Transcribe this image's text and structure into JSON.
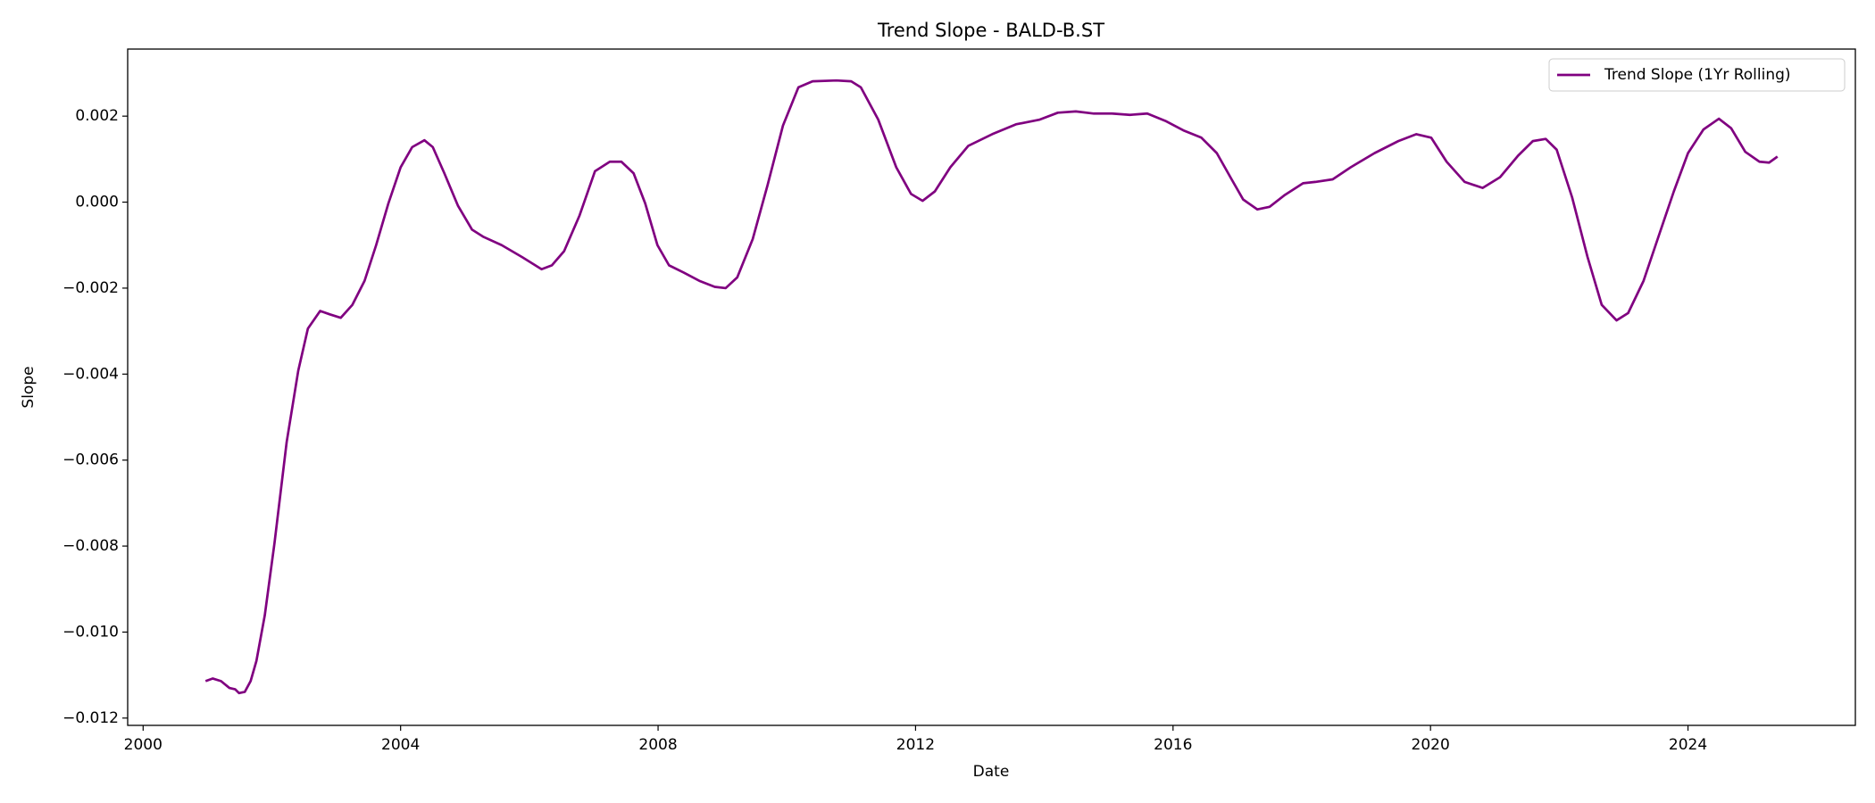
{
  "chart_data": {
    "type": "line",
    "title": "Trend Slope - BALD-B.ST",
    "x_label": "Date",
    "y_label": "Slope",
    "x": [
      2000.97,
      2001.08,
      2001.21,
      2001.34,
      2001.43,
      2001.49,
      2001.58,
      2001.67,
      2001.76,
      2001.89,
      2002.04,
      2002.23,
      2002.41,
      2002.56,
      2002.75,
      2002.9,
      2003.07,
      2003.25,
      2003.44,
      2003.62,
      2003.81,
      2004.0,
      2004.18,
      2004.37,
      2004.5,
      2004.68,
      2004.89,
      2005.11,
      2005.29,
      2005.57,
      2005.89,
      2006.04,
      2006.19,
      2006.35,
      2006.54,
      2006.78,
      2007.02,
      2007.25,
      2007.43,
      2007.62,
      2007.8,
      2007.99,
      2008.17,
      2008.4,
      2008.64,
      2008.88,
      2009.05,
      2009.23,
      2009.47,
      2009.7,
      2009.94,
      2010.18,
      2010.4,
      2010.77,
      2011.0,
      2011.15,
      2011.42,
      2011.7,
      2011.93,
      2012.11,
      2012.3,
      2012.54,
      2012.82,
      2013.19,
      2013.56,
      2013.93,
      2014.21,
      2014.49,
      2014.77,
      2015.05,
      2015.33,
      2015.6,
      2015.88,
      2016.16,
      2016.44,
      2016.68,
      2016.91,
      2017.09,
      2017.31,
      2017.5,
      2017.74,
      2018.02,
      2018.21,
      2018.48,
      2018.76,
      2019.13,
      2019.5,
      2019.78,
      2020.01,
      2020.25,
      2020.53,
      2020.81,
      2021.08,
      2021.36,
      2021.59,
      2021.79,
      2021.96,
      2022.2,
      2022.44,
      2022.66,
      2022.89,
      2023.07,
      2023.31,
      2023.56,
      2023.78,
      2024.0,
      2024.24,
      2024.48,
      2024.67,
      2024.89,
      2025.11,
      2025.26,
      2025.39
    ],
    "series": [
      {
        "name": "Trend Slope (1Yr Rolling)",
        "color": "#800080",
        "values": [
          -0.01114,
          -0.01108,
          -0.01114,
          -0.0113,
          -0.01133,
          -0.01142,
          -0.01139,
          -0.01114,
          -0.01067,
          -0.00961,
          -0.00794,
          -0.00558,
          -0.00392,
          -0.00294,
          -0.00253,
          -0.00261,
          -0.00269,
          -0.00239,
          -0.00183,
          -0.001,
          -3e-05,
          0.00081,
          0.00128,
          0.00144,
          0.00128,
          0.00067,
          -8e-05,
          -0.00064,
          -0.00081,
          -0.001,
          -0.00128,
          -0.00142,
          -0.00156,
          -0.00147,
          -0.00114,
          -0.00031,
          0.00072,
          0.00094,
          0.00094,
          0.00067,
          -3e-05,
          -0.001,
          -0.00147,
          -0.00164,
          -0.00183,
          -0.00197,
          -0.002,
          -0.00175,
          -0.00086,
          0.00039,
          0.00178,
          0.00267,
          0.00281,
          0.00283,
          0.00281,
          0.00267,
          0.00192,
          0.00081,
          0.00019,
          3e-05,
          0.00025,
          0.00081,
          0.00131,
          0.00158,
          0.00181,
          0.00192,
          0.00208,
          0.00211,
          0.00206,
          0.00206,
          0.00203,
          0.00206,
          0.00189,
          0.00167,
          0.0015,
          0.00114,
          0.00053,
          6e-05,
          -0.00017,
          -0.00011,
          0.00017,
          0.00044,
          0.00047,
          0.00053,
          0.00081,
          0.00114,
          0.00142,
          0.00158,
          0.0015,
          0.00094,
          0.00047,
          0.00033,
          0.00058,
          0.00108,
          0.00142,
          0.00147,
          0.00122,
          0.00011,
          -0.00128,
          -0.00239,
          -0.00275,
          -0.00258,
          -0.00183,
          -0.00072,
          0.00025,
          0.00114,
          0.00169,
          0.00194,
          0.00172,
          0.00117,
          0.00094,
          0.00092,
          0.00106
        ]
      }
    ],
    "xlim": [
      1999.76,
      2026.6
    ],
    "xticks": [
      2000,
      2004,
      2008,
      2012,
      2016,
      2020,
      2024
    ],
    "ylim": [
      -0.01217,
      0.00356
    ],
    "yticks": [
      {
        "value": -0.012,
        "label": "−0.012"
      },
      {
        "value": -0.01,
        "label": "−0.010"
      },
      {
        "value": -0.008,
        "label": "−0.008"
      },
      {
        "value": -0.006,
        "label": "−0.006"
      },
      {
        "value": -0.004,
        "label": "−0.004"
      },
      {
        "value": -0.002,
        "label": "−0.002"
      },
      {
        "value": 0,
        "label": "0.000"
      },
      {
        "value": 0.002,
        "label": "0.002"
      }
    ],
    "grid": false,
    "legend": "upper right"
  }
}
